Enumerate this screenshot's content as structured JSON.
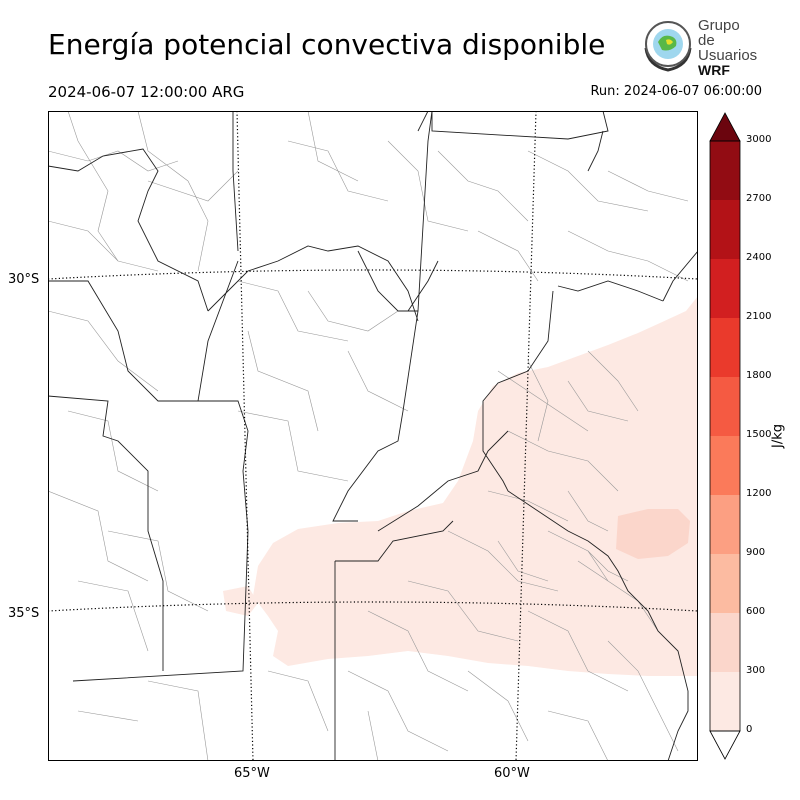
{
  "header": {
    "title": "Energía potencial convectiva disponible",
    "valid_time": "2024-06-07 12:00:00 ARG",
    "run_time": "Run: 2024-06-07 06:00:00"
  },
  "logo": {
    "line1": "Grupo de",
    "line2": "Usuarios",
    "line3": "WRF"
  },
  "map": {
    "lat_labels": [
      "30°S",
      "35°S"
    ],
    "lon_labels": [
      "65°W",
      "60°W"
    ]
  },
  "colorbar": {
    "label": "J/kg",
    "ticks": [
      "0",
      "300",
      "600",
      "900",
      "1200",
      "1500",
      "1800",
      "2100",
      "2400",
      "2700",
      "3000"
    ],
    "colors": [
      "#fde9e3",
      "#fbd6cb",
      "#fcbba1",
      "#fc9f82",
      "#fb7a5a",
      "#f55a42",
      "#ea3a2c",
      "#d21f20",
      "#b31217",
      "#920c13",
      "#6b050e"
    ]
  }
}
